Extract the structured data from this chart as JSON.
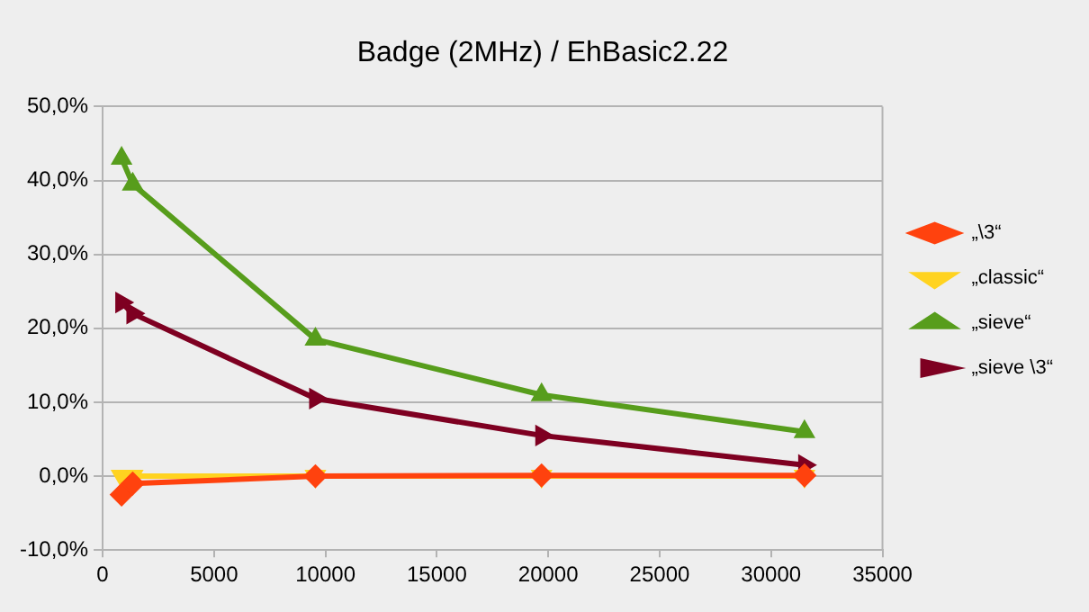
{
  "chart_data": {
    "type": "line",
    "title": "Badge (2MHz) / EhBasic2.22",
    "x": [
      850,
      1350,
      9550,
      19700,
      31500
    ],
    "series": [
      {
        "name": "„\\3“",
        "color": "#ff420e",
        "marker": "diamond",
        "values": [
          -2.5,
          -1,
          0,
          0.1,
          0.1
        ]
      },
      {
        "name": "„classic“",
        "color": "#ffd320",
        "marker": "triangle",
        "values": [
          0,
          0,
          0,
          0,
          0
        ]
      },
      {
        "name": "„sieve“",
        "color": "#579d1c",
        "marker": "triangle",
        "values": [
          43,
          39.5,
          18.5,
          11,
          6
        ]
      },
      {
        "name": "„sieve \\3“",
        "color": "#7e0021",
        "marker": "triangle",
        "values": [
          23.5,
          22,
          10.5,
          5.5,
          1.5
        ]
      }
    ],
    "xlim": [
      0,
      35000
    ],
    "xticks": [
      0,
      5000,
      10000,
      15000,
      20000,
      25000,
      30000,
      35000
    ],
    "ylim": [
      -10,
      50
    ],
    "yticks": [
      {
        "value": -10,
        "label": "-10,0%"
      },
      {
        "value": 0,
        "label": "0,0%"
      },
      {
        "value": 10,
        "label": "10,0%"
      },
      {
        "value": 20,
        "label": "20,0%"
      },
      {
        "value": 30,
        "label": "30,0%"
      },
      {
        "value": 40,
        "label": "40,0%"
      },
      {
        "value": 50,
        "label": "50,0%"
      }
    ],
    "grid": "y",
    "legend": "right",
    "line_style": "solid"
  }
}
